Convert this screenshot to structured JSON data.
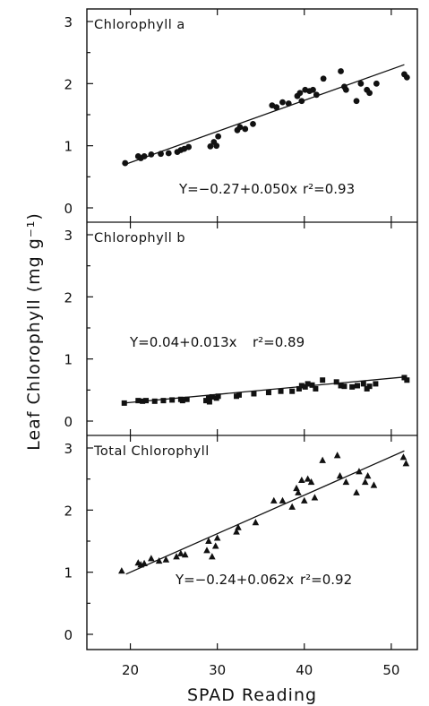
{
  "chart_data": {
    "type": "scatter",
    "xlabel": "SPAD Reading",
    "ylabel": "Leaf Chlorophyll (mg g⁻¹)",
    "xlim": [
      15,
      53
    ],
    "x_ticks": [
      "20",
      "30",
      "40",
      "50"
    ],
    "panels": [
      {
        "title": "Chlorophyll a",
        "ylim": [
          0,
          3
        ],
        "y_ticks": [
          "0",
          "1",
          "2",
          "3"
        ],
        "marker": "circle",
        "equation": "Y=−0.27+0.050x",
        "r2": "r²=0.93",
        "fit": {
          "intercept": -0.27,
          "slope": 0.05,
          "x_range": [
            19.5,
            51.5
          ]
        },
        "points": [
          [
            19.4,
            0.72
          ],
          [
            20.9,
            0.83
          ],
          [
            21.2,
            0.8
          ],
          [
            21.6,
            0.83
          ],
          [
            22.4,
            0.86
          ],
          [
            23.5,
            0.87
          ],
          [
            24.4,
            0.88
          ],
          [
            25.4,
            0.9
          ],
          [
            25.8,
            0.93
          ],
          [
            26.2,
            0.95
          ],
          [
            26.7,
            0.98
          ],
          [
            29.2,
            0.99
          ],
          [
            29.6,
            1.06
          ],
          [
            29.9,
            1.0
          ],
          [
            30.1,
            1.15
          ],
          [
            32.3,
            1.25
          ],
          [
            32.6,
            1.3
          ],
          [
            33.2,
            1.27
          ],
          [
            34.1,
            1.35
          ],
          [
            36.3,
            1.65
          ],
          [
            36.8,
            1.62
          ],
          [
            37.5,
            1.7
          ],
          [
            38.2,
            1.68
          ],
          [
            39.2,
            1.8
          ],
          [
            39.5,
            1.85
          ],
          [
            39.7,
            1.72
          ],
          [
            40.1,
            1.9
          ],
          [
            40.6,
            1.88
          ],
          [
            41.0,
            1.9
          ],
          [
            41.4,
            1.82
          ],
          [
            42.2,
            2.08
          ],
          [
            44.2,
            2.2
          ],
          [
            44.6,
            1.95
          ],
          [
            44.8,
            1.9
          ],
          [
            46.0,
            1.72
          ],
          [
            46.5,
            2.0
          ],
          [
            47.2,
            1.9
          ],
          [
            47.5,
            1.85
          ],
          [
            48.3,
            2.0
          ],
          [
            51.5,
            2.15
          ],
          [
            51.8,
            2.1
          ]
        ]
      },
      {
        "title": "Chlorophyll b",
        "ylim": [
          0,
          3
        ],
        "y_ticks": [
          "0",
          "1",
          "2",
          "3"
        ],
        "marker": "square",
        "equation": "Y=0.04+0.013x",
        "r2": "r²=0.89",
        "fit": {
          "intercept": 0.04,
          "slope": 0.013,
          "x_range": [
            19.5,
            51.5
          ]
        },
        "points": [
          [
            19.3,
            0.29
          ],
          [
            20.9,
            0.33
          ],
          [
            21.4,
            0.32
          ],
          [
            21.8,
            0.33
          ],
          [
            22.8,
            0.32
          ],
          [
            23.8,
            0.33
          ],
          [
            24.8,
            0.34
          ],
          [
            25.8,
            0.35
          ],
          [
            26.0,
            0.33
          ],
          [
            26.5,
            0.35
          ],
          [
            28.7,
            0.33
          ],
          [
            29.0,
            0.37
          ],
          [
            29.1,
            0.31
          ],
          [
            29.4,
            0.39
          ],
          [
            29.9,
            0.37
          ],
          [
            30.1,
            0.4
          ],
          [
            32.2,
            0.4
          ],
          [
            32.5,
            0.42
          ],
          [
            34.2,
            0.44
          ],
          [
            35.9,
            0.46
          ],
          [
            37.3,
            0.48
          ],
          [
            38.6,
            0.48
          ],
          [
            39.4,
            0.52
          ],
          [
            39.7,
            0.57
          ],
          [
            40.1,
            0.55
          ],
          [
            40.4,
            0.6
          ],
          [
            40.9,
            0.58
          ],
          [
            41.3,
            0.52
          ],
          [
            42.1,
            0.66
          ],
          [
            43.7,
            0.63
          ],
          [
            44.2,
            0.57
          ],
          [
            44.6,
            0.56
          ],
          [
            45.5,
            0.55
          ],
          [
            46.1,
            0.57
          ],
          [
            46.8,
            0.6
          ],
          [
            47.2,
            0.52
          ],
          [
            47.5,
            0.56
          ],
          [
            48.2,
            0.6
          ],
          [
            51.5,
            0.7
          ],
          [
            51.8,
            0.66
          ]
        ]
      },
      {
        "title": "Total Chlorophyll",
        "ylim": [
          0,
          3
        ],
        "y_ticks": [
          "0",
          "1",
          "2",
          "3"
        ],
        "marker": "triangle",
        "equation": "Y=−0.24+0.062x",
        "r2": "r²=0.92",
        "fit": {
          "intercept": -0.24,
          "slope": 0.062,
          "x_range": [
            19.5,
            51.5
          ]
        },
        "points": [
          [
            19.0,
            1.02
          ],
          [
            20.9,
            1.15
          ],
          [
            21.2,
            1.12
          ],
          [
            21.6,
            1.14
          ],
          [
            22.4,
            1.22
          ],
          [
            23.3,
            1.18
          ],
          [
            24.1,
            1.2
          ],
          [
            25.3,
            1.25
          ],
          [
            25.8,
            1.3
          ],
          [
            26.3,
            1.28
          ],
          [
            28.8,
            1.35
          ],
          [
            29.0,
            1.5
          ],
          [
            29.4,
            1.25
          ],
          [
            29.8,
            1.42
          ],
          [
            30.0,
            1.55
          ],
          [
            32.2,
            1.65
          ],
          [
            32.4,
            1.72
          ],
          [
            34.4,
            1.8
          ],
          [
            36.5,
            2.15
          ],
          [
            37.5,
            2.15
          ],
          [
            38.6,
            2.05
          ],
          [
            39.1,
            2.35
          ],
          [
            39.3,
            2.28
          ],
          [
            39.7,
            2.48
          ],
          [
            40.0,
            2.15
          ],
          [
            40.4,
            2.5
          ],
          [
            40.8,
            2.45
          ],
          [
            41.2,
            2.2
          ],
          [
            42.1,
            2.8
          ],
          [
            43.8,
            2.88
          ],
          [
            44.1,
            2.55
          ],
          [
            44.8,
            2.45
          ],
          [
            46.0,
            2.28
          ],
          [
            46.3,
            2.62
          ],
          [
            47.0,
            2.45
          ],
          [
            47.3,
            2.55
          ],
          [
            48.0,
            2.4
          ],
          [
            51.4,
            2.85
          ],
          [
            51.7,
            2.75
          ]
        ]
      }
    ]
  }
}
